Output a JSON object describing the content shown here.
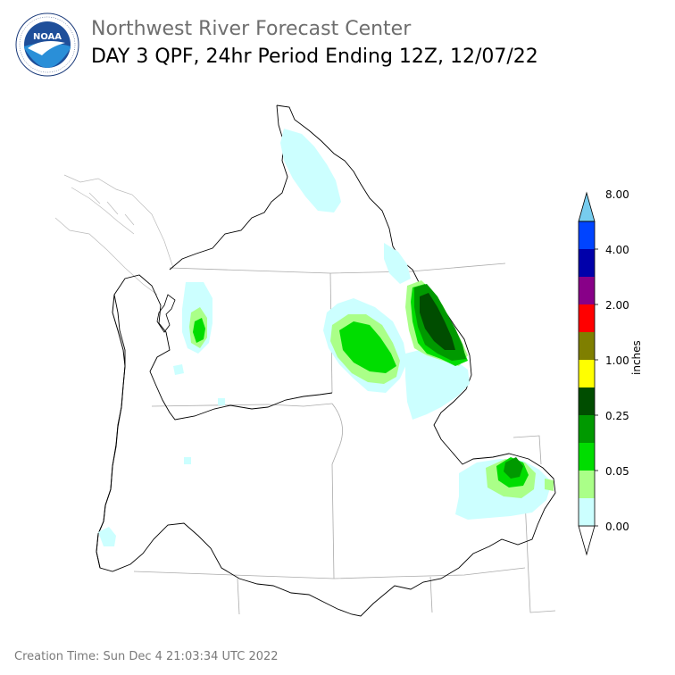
{
  "header": {
    "title": "Northwest River Forecast Center",
    "subtitle": "DAY 3 QPF, 24hr Period Ending 12Z, 12/07/22"
  },
  "logo": {
    "text": "NOAA",
    "ring_text": "NATIONAL OCEANIC AND ATMOSPHERIC ADMINISTRATION",
    "ring_text_bottom": "U.S. DEPARTMENT OF COMMERCE"
  },
  "legend": {
    "label": "inches",
    "ticks": [
      "0.00",
      "0.05",
      "0.25",
      "1.00",
      "2.00",
      "4.00",
      "8.00"
    ],
    "colors": [
      "#ffffff",
      "#ccffff",
      "#aaff88",
      "#00dd00",
      "#009900",
      "#004d00",
      "#ffff00",
      "#7f7f00",
      "#ff0000",
      "#880088",
      "#0000aa",
      "#0044ff",
      "#77ccee"
    ]
  },
  "footer": {
    "creation_time": "Creation Time: Sun Dec 4 21:03:34 UTC 2022"
  }
}
